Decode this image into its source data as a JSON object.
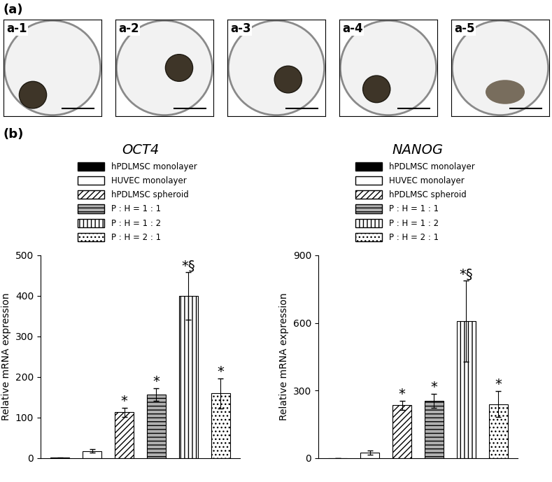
{
  "figure": {
    "panel_a": {
      "label": "(a)",
      "images": [
        "a-1",
        "a-2",
        "a-3",
        "a-4",
        "a-5"
      ]
    },
    "panel_b": {
      "label": "(b)"
    }
  },
  "chart_data": [
    {
      "type": "bar",
      "title": "OCT4",
      "y_label": "Relative mRNA expression",
      "categories": [
        "hPDLMSC monolayer",
        "HUVEC monolayer",
        "hPDLMSC spheroid",
        "P : H = 1 : 1",
        "P : H = 1 : 2",
        "P : H = 2 : 1"
      ],
      "values": [
        1,
        18,
        113,
        157,
        400,
        160
      ],
      "errors": [
        0.5,
        5,
        12,
        15,
        58,
        37
      ],
      "significance": [
        null,
        null,
        "*",
        "*",
        "*§",
        "*"
      ],
      "colors": [
        "#000000",
        "#ffffff",
        "#ffffff",
        "#b0b0b0",
        "#ffffff",
        "#ffffff"
      ],
      "ylim": [
        0,
        500
      ],
      "yticks": [
        0,
        100,
        200,
        300,
        400,
        500
      ],
      "tick_labels": "y",
      "legend": "lower left"
    },
    {
      "type": "bar",
      "title": "NANOG",
      "y_label": "Relative mRNA expression",
      "categories": [
        "hPDLMSC monolayer",
        "HUVEC monolayer",
        "hPDLMSC spheroid",
        "P : H = 1 : 1",
        "P : H = 1 : 2",
        "P : H = 2 : 1"
      ],
      "values": [
        1,
        25,
        235,
        255,
        607,
        240
      ],
      "errors": [
        0.5,
        8,
        20,
        32,
        180,
        58
      ],
      "significance": [
        null,
        null,
        "*",
        "*",
        "*§",
        "*"
      ],
      "colors": [
        "#000000",
        "#ffffff",
        "#ffffff",
        "#b0b0b0",
        "#ffffff",
        "#ffffff"
      ],
      "ylim": [
        0,
        900
      ],
      "yticks": [
        0,
        300,
        600,
        900
      ],
      "tick_labels": "y",
      "legend": "lower left"
    }
  ]
}
